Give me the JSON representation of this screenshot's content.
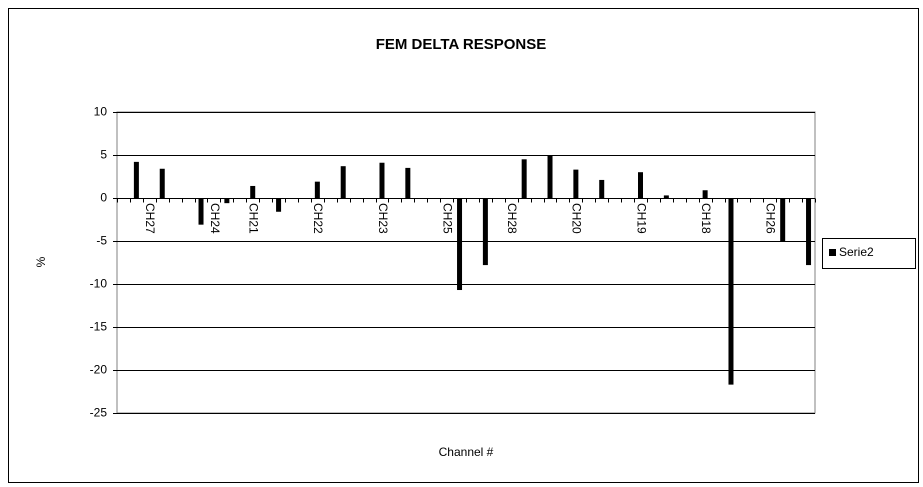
{
  "chart_data": {
    "type": "bar",
    "title": "FEM DELTA RESPONSE",
    "x_label": "Channel #",
    "y_label": "%",
    "categories": [
      null,
      null,
      "CH27",
      null,
      null,
      null,
      null,
      "CH24",
      null,
      null,
      "CH21",
      null,
      null,
      null,
      null,
      "CH22",
      null,
      null,
      null,
      null,
      "CH23",
      null,
      null,
      null,
      null,
      "CH25",
      null,
      null,
      null,
      null,
      "CH28",
      null,
      null,
      null,
      null,
      "CH20",
      null,
      null,
      null,
      null,
      "CH19",
      null,
      null,
      null,
      null,
      "CH18",
      null,
      null,
      null,
      null,
      "CH26",
      null,
      null,
      null
    ],
    "series": [
      {
        "name": "Serie2",
        "color": "#000000",
        "values": [
          null,
          4.2,
          null,
          3.4,
          null,
          null,
          -3.1,
          null,
          -0.6,
          null,
          1.4,
          null,
          -1.6,
          null,
          null,
          1.9,
          null,
          3.7,
          null,
          null,
          4.1,
          null,
          3.5,
          null,
          null,
          null,
          -10.7,
          null,
          -7.8,
          null,
          null,
          4.5,
          null,
          4.9,
          null,
          3.3,
          null,
          2.1,
          null,
          null,
          3.0,
          null,
          0.3,
          null,
          null,
          0.9,
          null,
          -21.7,
          null,
          null,
          null,
          -5.1,
          null,
          -7.8
        ]
      }
    ],
    "ylim": [
      -25,
      10
    ],
    "yticks": [
      10,
      5,
      0,
      -5,
      -10,
      -15,
      -20,
      -25
    ],
    "grid": true,
    "legend": "right"
  }
}
